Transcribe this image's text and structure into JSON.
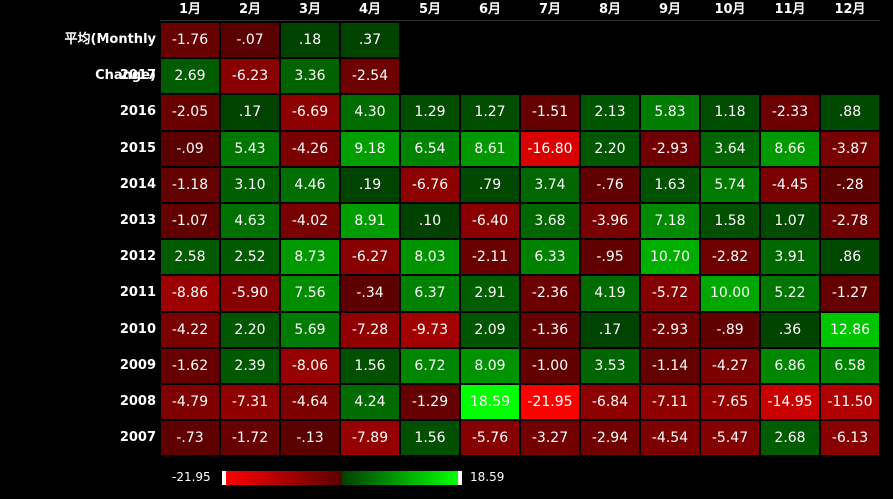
{
  "table": {
    "columns": [
      "1月",
      "2月",
      "3月",
      "4月",
      "5月",
      "6月",
      "7月",
      "8月",
      "9月",
      "10月",
      "11月",
      "12月"
    ],
    "rows": [
      {
        "label": "平均(Monthly Change)",
        "cells": [
          "-1.76",
          "-.07",
          ".18",
          ".37"
        ]
      },
      {
        "label": "2017",
        "cells": [
          "2.69",
          "-6.23",
          "3.36",
          "-2.54"
        ]
      },
      {
        "label": "2016",
        "cells": [
          "-2.05",
          ".17",
          "-6.69",
          "4.30",
          "1.29",
          "1.27",
          "-1.51",
          "2.13",
          "5.83",
          "1.18",
          "-2.33",
          ".88"
        ]
      },
      {
        "label": "2015",
        "cells": [
          "-.09",
          "5.43",
          "-4.26",
          "9.18",
          "6.54",
          "8.61",
          "-16.80",
          "2.20",
          "-2.93",
          "3.64",
          "8.66",
          "-3.87"
        ]
      },
      {
        "label": "2014",
        "cells": [
          "-1.18",
          "3.10",
          "4.46",
          ".19",
          "-6.76",
          ".79",
          "3.74",
          "-.76",
          "1.63",
          "5.74",
          "-4.45",
          "-.28"
        ]
      },
      {
        "label": "2013",
        "cells": [
          "-1.07",
          "4.63",
          "-4.02",
          "8.91",
          ".10",
          "-6.40",
          "3.68",
          "-3.96",
          "7.18",
          "1.58",
          "1.07",
          "-2.78"
        ]
      },
      {
        "label": "2012",
        "cells": [
          "2.58",
          "2.52",
          "8.73",
          "-6.27",
          "8.03",
          "-2.11",
          "6.33",
          "-.95",
          "10.70",
          "-2.82",
          "3.91",
          ".86"
        ]
      },
      {
        "label": "2011",
        "cells": [
          "-8.86",
          "-5.90",
          "7.56",
          "-.34",
          "6.37",
          "2.91",
          "-2.36",
          "4.19",
          "-5.72",
          "10.00",
          "5.22",
          "-1.27"
        ]
      },
      {
        "label": "2010",
        "cells": [
          "-4.22",
          "2.20",
          "5.69",
          "-7.28",
          "-9.73",
          "2.09",
          "-1.36",
          ".17",
          "-2.93",
          "-.89",
          ".36",
          "12.86"
        ]
      },
      {
        "label": "2009",
        "cells": [
          "-1.62",
          "2.39",
          "-8.06",
          "1.56",
          "6.72",
          "8.09",
          "-1.00",
          "3.53",
          "-1.14",
          "-4.27",
          "6.86",
          "6.58"
        ]
      },
      {
        "label": "2008",
        "cells": [
          "-4.79",
          "-7.31",
          "-4.64",
          "4.24",
          "-1.29",
          "18.59",
          "-21.95",
          "-6.84",
          "-7.11",
          "-7.65",
          "-14.95",
          "-11.50"
        ]
      },
      {
        "label": "2007",
        "cells": [
          "-.73",
          "-1.72",
          "-.13",
          "-7.89",
          "1.56",
          "-5.76",
          "-3.27",
          "-2.94",
          "-4.54",
          "-5.47",
          "2.68",
          "-6.13"
        ]
      }
    ],
    "legend": {
      "min": "-21.95",
      "max": "18.59"
    }
  }
}
